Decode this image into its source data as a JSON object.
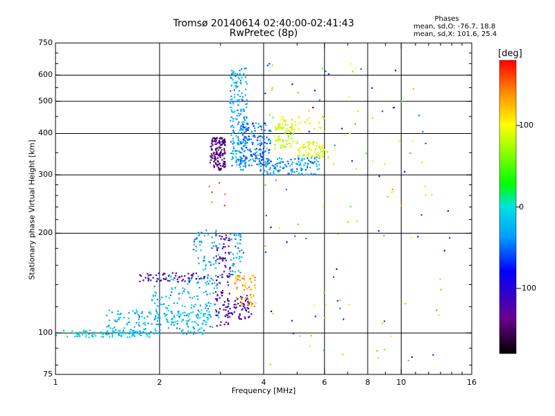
{
  "chart_data": {
    "type": "scatter",
    "title": "Tromsø 20140614 02:40:00-02:41:43",
    "subtitle": "RwPretec (8p)",
    "xlabel": "Frequency [MHz]",
    "ylabel": "Stationary phase Virtual Height [km]",
    "x_scale": "log",
    "y_scale": "log",
    "xlim": [
      1,
      16
    ],
    "ylim": [
      75,
      750
    ],
    "x_ticks": [
      1,
      2,
      4,
      6,
      8,
      10,
      16
    ],
    "x_tick_labels": [
      "1",
      "2",
      "4",
      "6",
      "8",
      "10",
      "16"
    ],
    "x_gridlines": [
      2,
      4,
      6,
      8,
      10
    ],
    "y_ticks": [
      75,
      100,
      200,
      300,
      400,
      500,
      600,
      750
    ],
    "y_tick_labels": [
      "75",
      "100",
      "200",
      "300",
      "400",
      "500",
      "600",
      "750"
    ],
    "y_gridlines": [
      100,
      200,
      300,
      400,
      500,
      600
    ],
    "grid": true,
    "colorbar": {
      "label": "[deg]",
      "range": [
        -180,
        180
      ],
      "ticks": [
        100,
        0,
        -100
      ],
      "tick_labels": [
        "100",
        "0",
        "-100"
      ]
    },
    "phase_stats": {
      "heading": "Phases",
      "line_o": "mean, sd,O: -76.7, 18.8",
      "line_x": "mean, sd,X: 101.6, 25.4"
    },
    "clusters": [
      {
        "x": [
          1.0,
          1.9
        ],
        "y": [
          97,
          102
        ],
        "phase": -10,
        "count": 90
      },
      {
        "x": [
          1.4,
          2.8
        ],
        "y": [
          99,
          118
        ],
        "phase": -20,
        "count": 180
      },
      {
        "x": [
          1.9,
          3.0
        ],
        "y": [
          104,
          150
        ],
        "phase": -25,
        "count": 130
      },
      {
        "x": [
          2.5,
          3.0
        ],
        "y": [
          140,
          205
        ],
        "phase": -30,
        "count": 70
      },
      {
        "x": [
          1.75,
          2.7
        ],
        "y": [
          143,
          152
        ],
        "phase": -120,
        "count": 60
      },
      {
        "x": [
          2.9,
          3.2
        ],
        "y": [
          105,
          200
        ],
        "phase": -125,
        "count": 90
      },
      {
        "x": [
          3.1,
          3.7
        ],
        "y": [
          110,
          130
        ],
        "phase": -110,
        "count": 60
      },
      {
        "x": [
          3.2,
          3.5
        ],
        "y": [
          150,
          200
        ],
        "phase": -35,
        "count": 40
      },
      {
        "x": [
          3.3,
          3.8
        ],
        "y": [
          120,
          150
        ],
        "phase": 130,
        "count": 70
      },
      {
        "x": [
          2.7,
          3.1
        ],
        "y": [
          230,
          300
        ],
        "phase": 150,
        "count": 6
      },
      {
        "x": [
          2.8,
          3.1
        ],
        "y": [
          310,
          390
        ],
        "phase": -140,
        "count": 150
      },
      {
        "x": [
          3.2,
          3.6
        ],
        "y": [
          310,
          630
        ],
        "phase": -30,
        "count": 200
      },
      {
        "x": [
          3.4,
          4.2
        ],
        "y": [
          320,
          430
        ],
        "phase": -50,
        "count": 160
      },
      {
        "x": [
          3.9,
          5.8
        ],
        "y": [
          300,
          340
        ],
        "phase": -35,
        "count": 130
      },
      {
        "x": [
          4.3,
          4.9
        ],
        "y": [
          360,
          430
        ],
        "phase": 80,
        "count": 60
      },
      {
        "x": [
          5.0,
          6.0
        ],
        "y": [
          340,
          380
        ],
        "phase": 90,
        "count": 70
      },
      {
        "x": [
          4.4,
          6.0
        ],
        "y": [
          400,
          450
        ],
        "phase": 100,
        "count": 40
      },
      {
        "x": [
          4.0,
          12.0
        ],
        "y": [
          300,
          650
        ],
        "phase": 0,
        "count": 60
      },
      {
        "x": [
          4.0,
          14.0
        ],
        "y": [
          80,
          300
        ],
        "phase": 0,
        "count": 70
      }
    ]
  }
}
